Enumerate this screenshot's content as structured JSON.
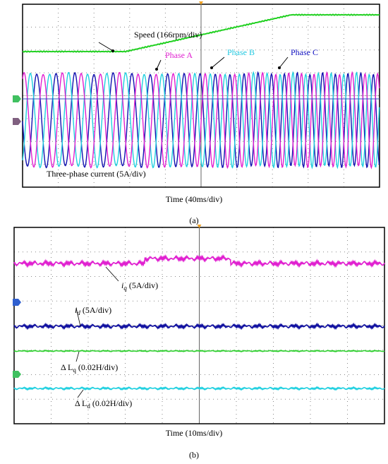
{
  "panels": [
    {
      "label": "(a)",
      "time_label": "Time (40ms/div)",
      "speed": "Speed (166rpm/div)",
      "phase_a": "Phase A",
      "phase_b": "Phase B",
      "phase_c": "Phase C",
      "current": "Three-phase current (5A/div)"
    },
    {
      "label": "(b)",
      "time_label": "Time (10ms/div)",
      "iq": {
        "symbol": "i",
        "subscript": "q",
        "text": " (5A/div)"
      },
      "id": {
        "symbol": "i",
        "subscript": "d",
        "text": " (5A/div)"
      },
      "dlq": {
        "symbol": "Δ L",
        "subscript": "q",
        "text": " (0.02H/div)"
      },
      "dld": {
        "symbol": "Δ L",
        "subscript": "d",
        "text": " (0.02H/div)"
      }
    }
  ]
}
